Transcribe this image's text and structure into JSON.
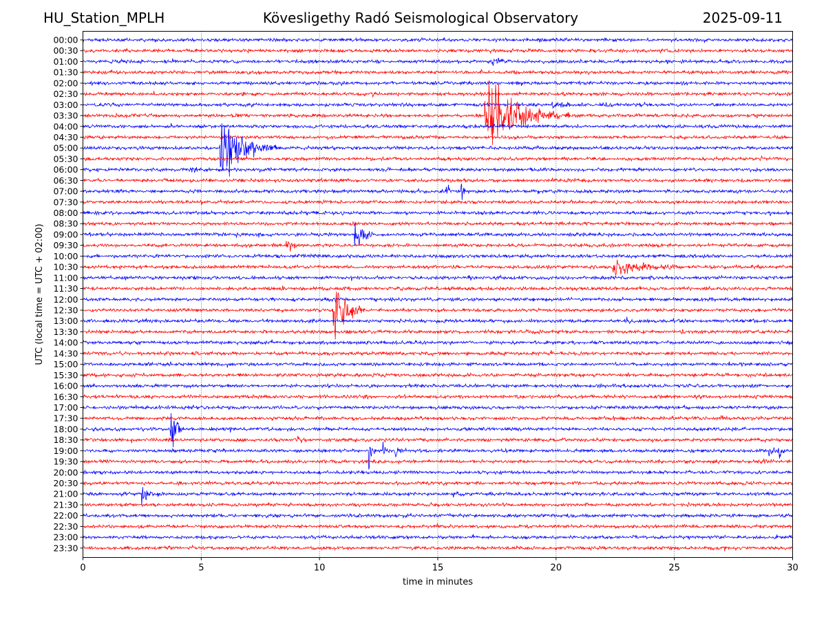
{
  "header": {
    "station": "HU_Station_MPLH",
    "observatory": "Kövesligethy Radó Seismological Observatory",
    "date": "2025-09-11"
  },
  "chart_data": {
    "type": "line",
    "title": "Kövesligethy Radó Seismological Observatory",
    "xlabel": "time in minutes",
    "ylabel": "UTC (local time = UTC + 02:00)",
    "xlim": [
      0,
      30
    ],
    "x_ticks": [
      "0",
      "5",
      "10",
      "15",
      "20",
      "25",
      "30"
    ],
    "grid": "vertical dotted lines at x ticks",
    "row_labels": [
      "00:00",
      "00:30",
      "01:00",
      "01:30",
      "02:00",
      "02:30",
      "03:00",
      "03:30",
      "04:00",
      "04:30",
      "05:00",
      "05:30",
      "06:00",
      "06:30",
      "07:00",
      "07:30",
      "08:00",
      "08:30",
      "09:00",
      "09:30",
      "10:00",
      "10:30",
      "11:00",
      "11:30",
      "12:00",
      "12:30",
      "13:00",
      "13:30",
      "14:00",
      "14:30",
      "15:00",
      "15:30",
      "16:00",
      "16:30",
      "17:00",
      "17:30",
      "18:00",
      "18:30",
      "19:00",
      "19:30",
      "20:00",
      "20:30",
      "21:00",
      "21:30",
      "22:00",
      "22:30",
      "23:00",
      "23:30"
    ],
    "trace_colors": [
      "#0000ff",
      "#ff0000"
    ],
    "events": [
      {
        "row": "01:00",
        "start_min": 17.3,
        "dur_min": 0.9,
        "amp": 0.35
      },
      {
        "row": "03:00",
        "start_min": 19.8,
        "dur_min": 1.6,
        "amp": 0.22
      },
      {
        "row": "03:00",
        "start_min": 22.0,
        "dur_min": 1.5,
        "amp": 0.15
      },
      {
        "row": "03:30",
        "start_min": 17.0,
        "dur_min": 3.6,
        "amp": 3.2
      },
      {
        "row": "05:00",
        "start_min": 5.8,
        "dur_min": 2.4,
        "amp": 3.0
      },
      {
        "row": "06:00",
        "start_min": 4.5,
        "dur_min": 0.5,
        "amp": 0.35
      },
      {
        "row": "07:00",
        "start_min": 15.35,
        "dur_min": 0.2,
        "amp": 2.0
      },
      {
        "row": "07:00",
        "start_min": 16.0,
        "dur_min": 0.2,
        "amp": 2.0
      },
      {
        "row": "09:00",
        "start_min": 11.5,
        "dur_min": 0.8,
        "amp": 1.5
      },
      {
        "row": "09:30",
        "start_min": 8.6,
        "dur_min": 0.7,
        "amp": 0.45
      },
      {
        "row": "10:30",
        "start_min": 22.4,
        "dur_min": 3.0,
        "amp": 0.9
      },
      {
        "row": "11:00",
        "start_min": 16.3,
        "dur_min": 0.5,
        "amp": 0.25
      },
      {
        "row": "12:30",
        "start_min": 10.6,
        "dur_min": 1.3,
        "amp": 3.0
      },
      {
        "row": "13:00",
        "start_min": 23.0,
        "dur_min": 0.5,
        "amp": 0.3
      },
      {
        "row": "17:30",
        "start_min": 22.4,
        "dur_min": 0.5,
        "amp": 0.3
      },
      {
        "row": "17:30",
        "start_min": 26.9,
        "dur_min": 0.5,
        "amp": 0.3
      },
      {
        "row": "18:00",
        "start_min": 3.7,
        "dur_min": 0.6,
        "amp": 2.5
      },
      {
        "row": "18:30",
        "start_min": 9.1,
        "dur_min": 0.4,
        "amp": 0.3
      },
      {
        "row": "19:00",
        "start_min": 12.1,
        "dur_min": 0.3,
        "amp": 1.5
      },
      {
        "row": "19:00",
        "start_min": 12.7,
        "dur_min": 0.3,
        "amp": 0.9
      },
      {
        "row": "19:00",
        "start_min": 13.2,
        "dur_min": 0.4,
        "amp": 0.6
      },
      {
        "row": "19:00",
        "start_min": 29.0,
        "dur_min": 0.3,
        "amp": 1.3
      },
      {
        "row": "19:00",
        "start_min": 29.4,
        "dur_min": 0.3,
        "amp": 0.9
      },
      {
        "row": "19:30",
        "start_min": 28.7,
        "dur_min": 0.5,
        "amp": 0.25
      },
      {
        "row": "21:00",
        "start_min": 2.5,
        "dur_min": 0.7,
        "amp": 1.0
      },
      {
        "row": "21:00",
        "start_min": 15.6,
        "dur_min": 0.5,
        "amp": 0.25
      }
    ]
  }
}
